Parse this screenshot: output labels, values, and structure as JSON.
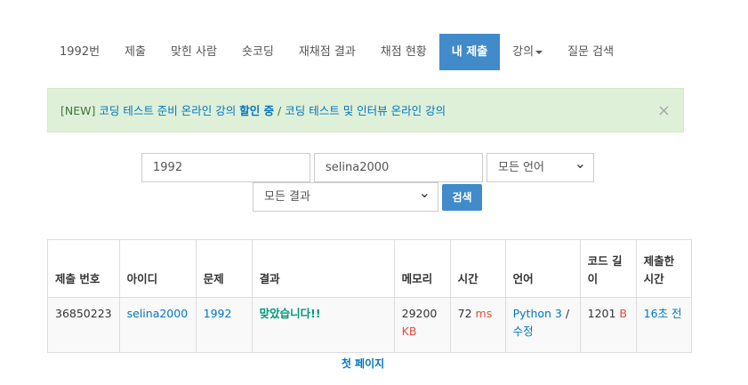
{
  "nav": {
    "tabs": [
      {
        "label": "1992번"
      },
      {
        "label": "제출"
      },
      {
        "label": "맞힌 사람"
      },
      {
        "label": "숏코딩"
      },
      {
        "label": "재채점 결과"
      },
      {
        "label": "채점 현황"
      },
      {
        "label": "내 제출",
        "active": true
      },
      {
        "label": "강의"
      },
      {
        "label": "질문 검색"
      }
    ]
  },
  "alert": {
    "prefix": "[NEW] ",
    "link1": "코딩 테스트 준비 온라인 강의 ",
    "bold": "할인 중",
    "sep": " / ",
    "link2": "코딩 테스트 및 인터뷰 온라인 강의",
    "close": "×"
  },
  "search": {
    "problem_id": "1992",
    "user_id": "selina2000",
    "language": "모든 언어",
    "result": "모든 결과",
    "button": "검색"
  },
  "table": {
    "headers": [
      "제출 번호",
      "아이디",
      "문제",
      "결과",
      "메모리",
      "시간",
      "언어",
      "코드 길이",
      "제출한 시간"
    ],
    "rows": [
      {
        "id": "36850223",
        "user": "selina2000",
        "problem": "1992",
        "result": "맞았습니다!!",
        "memory": "29200",
        "memory_unit": "KB",
        "time": "72",
        "time_unit": "ms",
        "language": "Python 3",
        "edit": "수정",
        "code_length": "1201",
        "code_unit": "B",
        "submitted": "16초 전"
      }
    ]
  },
  "pager": {
    "first": "첫 페이지"
  },
  "colors": {
    "accent": "#428bca",
    "alert_bg": "#dff0d8",
    "accepted": "#009874",
    "unit": "#e74c3c"
  }
}
